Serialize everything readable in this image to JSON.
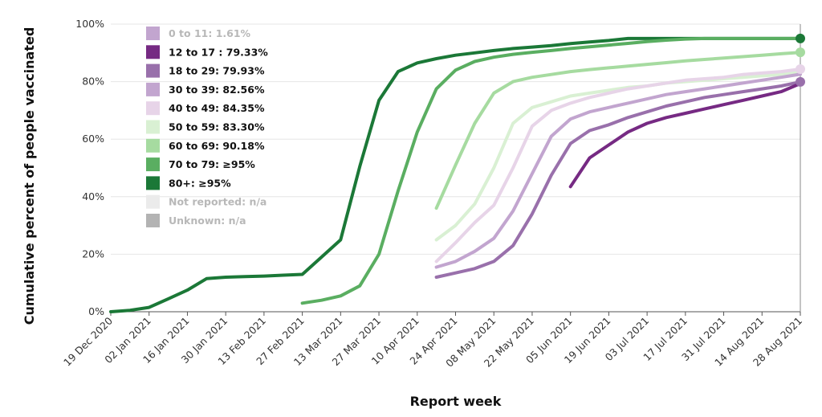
{
  "chart_data": {
    "type": "line",
    "xlabel": "Report week",
    "ylabel": "Cumulative percent of people vaccinated",
    "ylim": [
      0,
      100
    ],
    "y_ticks": [
      "0%",
      "20%",
      "40%",
      "60%",
      "80%",
      "100%"
    ],
    "x_ticks": [
      "19 Dec 2020",
      "02 Jan 2021",
      "16 Jan 2021",
      "30 Jan 2021",
      "13 Feb 2021",
      "27 Feb 2021",
      "13 Mar 2021",
      "27 Mar 2021",
      "10 Apr 2021",
      "24 Apr 2021",
      "08 May 2021",
      "22 May 2021",
      "05 Jun 2021",
      "19 Jun 2021",
      "03 Jul 2021",
      "17 Jul 2021",
      "31 Jul 2021",
      "14 Aug 2021",
      "28 Aug 2021"
    ],
    "x_start": "2020-12-19",
    "x_end": "2021-08-28",
    "grid": "horizontal",
    "legend_position": "top-left",
    "series": [
      {
        "name": "0 to 11",
        "legend": "0 to 11: 1.61%",
        "color": "#c2a5cf",
        "muted": true,
        "x": [],
        "y": []
      },
      {
        "name": "12 to 17",
        "legend": "12 to 17 : 79.33%",
        "color": "#762a83",
        "x": [
          "2021-06-05",
          "2021-06-12",
          "2021-06-19",
          "2021-06-26",
          "2021-07-03",
          "2021-07-10",
          "2021-07-17",
          "2021-07-24",
          "2021-07-31",
          "2021-08-07",
          "2021-08-14",
          "2021-08-21",
          "2021-08-28"
        ],
        "y": [
          43.5,
          53.5,
          58,
          62.5,
          65.5,
          67.5,
          69,
          70.5,
          72,
          73.5,
          75,
          76.5,
          79.33
        ]
      },
      {
        "name": "18 to 29",
        "legend": "18 to 29: 79.93%",
        "color": "#9970ab",
        "endpoint": true,
        "x": [
          "2021-04-17",
          "2021-04-24",
          "2021-05-01",
          "2021-05-08",
          "2021-05-15",
          "2021-05-22",
          "2021-05-29",
          "2021-06-05",
          "2021-06-12",
          "2021-06-19",
          "2021-06-26",
          "2021-07-03",
          "2021-07-10",
          "2021-07-17",
          "2021-07-24",
          "2021-07-31",
          "2021-08-07",
          "2021-08-14",
          "2021-08-21",
          "2021-08-28"
        ],
        "y": [
          12,
          13.5,
          15,
          17.5,
          23,
          34,
          47.5,
          58.5,
          63,
          65,
          67.5,
          69.5,
          71.5,
          73,
          74.5,
          75.5,
          76.5,
          77.5,
          78.5,
          79.93
        ]
      },
      {
        "name": "30 to 39",
        "legend": "30 to 39: 82.56%",
        "color": "#c2a5cf",
        "x": [
          "2021-04-17",
          "2021-04-24",
          "2021-05-01",
          "2021-05-08",
          "2021-05-15",
          "2021-05-22",
          "2021-05-29",
          "2021-06-05",
          "2021-06-12",
          "2021-06-19",
          "2021-06-26",
          "2021-07-03",
          "2021-07-10",
          "2021-07-17",
          "2021-07-24",
          "2021-07-31",
          "2021-08-07",
          "2021-08-14",
          "2021-08-21",
          "2021-08-28"
        ],
        "y": [
          15.5,
          17.5,
          21,
          25.5,
          35,
          48,
          61,
          67,
          69.5,
          71,
          72.5,
          74,
          75.5,
          76.5,
          77.5,
          78.5,
          79.5,
          80.5,
          81.5,
          82.56
        ]
      },
      {
        "name": "40 to 49",
        "legend": "40 to 49: 84.35%",
        "color": "#e7d4e8",
        "endpoint": true,
        "x": [
          "2021-04-17",
          "2021-04-24",
          "2021-05-01",
          "2021-05-08",
          "2021-05-15",
          "2021-05-22",
          "2021-05-29",
          "2021-06-05",
          "2021-06-12",
          "2021-06-19",
          "2021-06-26",
          "2021-07-03",
          "2021-07-10",
          "2021-07-17",
          "2021-07-24",
          "2021-07-31",
          "2021-08-07",
          "2021-08-14",
          "2021-08-21",
          "2021-08-28"
        ],
        "y": [
          17.5,
          24,
          31,
          37,
          50,
          64.5,
          70,
          72.5,
          74.5,
          76,
          77.5,
          78.5,
          79.5,
          80.5,
          81,
          81.5,
          82.5,
          83,
          83.5,
          84.35
        ]
      },
      {
        "name": "50 to 59",
        "legend": "50 to 59: 83.30%",
        "color": "#d9f0d3",
        "x": [
          "2021-04-17",
          "2021-04-24",
          "2021-05-01",
          "2021-05-08",
          "2021-05-15",
          "2021-05-22",
          "2021-05-29",
          "2021-06-05",
          "2021-06-12",
          "2021-06-19",
          "2021-06-26",
          "2021-07-03",
          "2021-07-10",
          "2021-07-17",
          "2021-07-24",
          "2021-07-31",
          "2021-08-07",
          "2021-08-14",
          "2021-08-21",
          "2021-08-28"
        ],
        "y": [
          25,
          30,
          37.5,
          50,
          65.5,
          71,
          73,
          75,
          76,
          77,
          78,
          78.5,
          79.5,
          80,
          80.5,
          81,
          81.5,
          82,
          82.5,
          83.3
        ]
      },
      {
        "name": "60 to 69",
        "legend": "60 to 69: 90.18%",
        "color": "#a6dba0",
        "endpoint": true,
        "x": [
          "2021-04-17",
          "2021-04-24",
          "2021-05-01",
          "2021-05-08",
          "2021-05-15",
          "2021-05-22",
          "2021-05-29",
          "2021-06-05",
          "2021-06-12",
          "2021-06-19",
          "2021-06-26",
          "2021-07-03",
          "2021-07-10",
          "2021-07-17",
          "2021-07-24",
          "2021-07-31",
          "2021-08-07",
          "2021-08-14",
          "2021-08-21",
          "2021-08-28"
        ],
        "y": [
          36,
          51,
          65.5,
          76,
          80,
          81.5,
          82.5,
          83.5,
          84.2,
          84.8,
          85.4,
          86,
          86.6,
          87.2,
          87.7,
          88.2,
          88.7,
          89.2,
          89.7,
          90.18
        ]
      },
      {
        "name": "70 to 79",
        "legend": "70 to 79: ≥95%",
        "color": "#5aae61",
        "x": [
          "2021-02-27",
          "2021-03-06",
          "2021-03-13",
          "2021-03-20",
          "2021-03-27",
          "2021-04-03",
          "2021-04-10",
          "2021-04-17",
          "2021-04-24",
          "2021-05-01",
          "2021-05-08",
          "2021-05-15",
          "2021-05-22",
          "2021-05-29",
          "2021-06-05",
          "2021-06-12",
          "2021-06-19",
          "2021-06-26",
          "2021-07-03",
          "2021-07-10",
          "2021-07-17",
          "2021-07-24",
          "2021-07-31",
          "2021-08-07",
          "2021-08-14",
          "2021-08-21",
          "2021-08-28"
        ],
        "y": [
          3,
          4,
          5.5,
          9,
          20,
          42,
          62.5,
          77.5,
          84,
          87,
          88.5,
          89.5,
          90.2,
          90.8,
          91.5,
          92.1,
          92.7,
          93.3,
          93.9,
          94.4,
          94.8,
          95,
          95,
          95,
          95,
          95,
          95
        ]
      },
      {
        "name": "80+",
        "legend": "80+: ≥95%",
        "color": "#1b7837",
        "endpoint": true,
        "x": [
          "2020-12-19",
          "2020-12-26",
          "2021-01-02",
          "2021-01-09",
          "2021-01-16",
          "2021-01-23",
          "2021-01-30",
          "2021-02-06",
          "2021-02-13",
          "2021-02-20",
          "2021-02-27",
          "2021-03-06",
          "2021-03-13",
          "2021-03-20",
          "2021-03-27",
          "2021-04-03",
          "2021-04-10",
          "2021-04-17",
          "2021-04-24",
          "2021-05-01",
          "2021-05-08",
          "2021-05-15",
          "2021-05-22",
          "2021-05-29",
          "2021-06-05",
          "2021-06-12",
          "2021-06-19",
          "2021-06-26",
          "2021-07-03",
          "2021-07-10",
          "2021-07-17",
          "2021-07-24",
          "2021-07-31",
          "2021-08-07",
          "2021-08-14",
          "2021-08-21",
          "2021-08-28"
        ],
        "y": [
          0,
          0.5,
          1.5,
          4.5,
          7.5,
          11.5,
          12,
          12.2,
          12.4,
          12.7,
          13,
          19,
          25,
          50.5,
          73.5,
          83.5,
          86.5,
          88,
          89.2,
          90,
          90.8,
          91.5,
          92,
          92.5,
          93.2,
          93.8,
          94.3,
          95,
          95,
          95,
          95,
          95,
          95,
          95,
          95,
          95,
          95
        ]
      },
      {
        "name": "Not reported",
        "legend": "Not reported: n/a",
        "color": "#ebebeb",
        "muted": true,
        "x": [],
        "y": []
      },
      {
        "name": "Unknown",
        "legend": "Unknown: n/a",
        "color": "#b3b3b3",
        "muted": true,
        "x": [],
        "y": []
      }
    ]
  }
}
